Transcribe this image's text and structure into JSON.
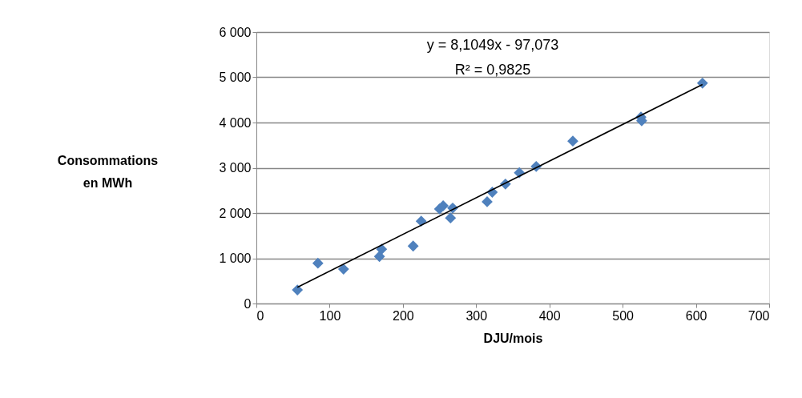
{
  "chart_data": {
    "type": "scatter",
    "xlabel": "DJU/mois",
    "ylabel": "Consommations en MWh",
    "annotations": [
      "y = 8,1049x - 97,073",
      "R² = 0,9825"
    ],
    "xlim": [
      0,
      700
    ],
    "xticks": [
      0,
      100,
      200,
      300,
      400,
      500,
      600,
      700
    ],
    "ylim": [
      0,
      6000
    ],
    "yticks": [
      {
        "value": 0,
        "label": "0"
      },
      {
        "value": 1000,
        "label": "1 000"
      },
      {
        "value": 2000,
        "label": "2 000"
      },
      {
        "value": 3000,
        "label": "3 000"
      },
      {
        "value": 4000,
        "label": "4 000"
      },
      {
        "value": 5000,
        "label": "5 000"
      },
      {
        "value": 6000,
        "label": "6 000"
      }
    ],
    "grid": "y",
    "marker": "diamond",
    "series": [
      {
        "type": "scatter",
        "color": "#4f81bd",
        "x": [
          56,
          84,
          119,
          168,
          171,
          214,
          225,
          250,
          255,
          268,
          265,
          315,
          322,
          340,
          359,
          382,
          432,
          525,
          526,
          609
        ],
        "values": [
          300,
          890,
          760,
          1040,
          1200,
          1270,
          1820,
          2090,
          2160,
          2110,
          1890,
          2250,
          2460,
          2640,
          2890,
          3030,
          3590,
          4120,
          4040,
          4870
        ]
      },
      {
        "type": "line",
        "color": "#000000",
        "marker": "none",
        "line_style": "solid",
        "x": [
          56,
          609
        ],
        "values": [
          360,
          4840
        ]
      }
    ]
  }
}
